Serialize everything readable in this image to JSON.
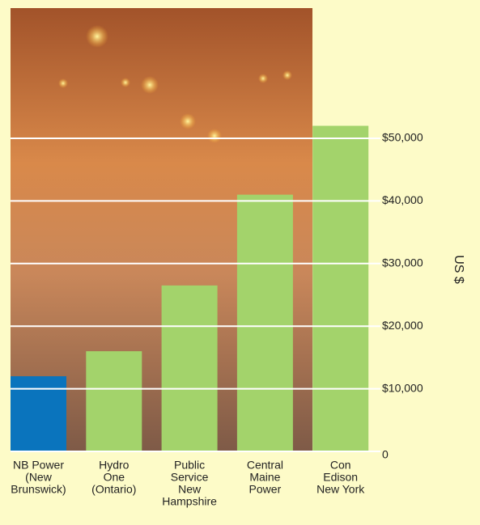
{
  "chart_data": {
    "type": "bar",
    "categories": [
      [
        "NB Power",
        "(New",
        "Brunswick)"
      ],
      [
        "Hydro",
        "One",
        "(Ontario)"
      ],
      [
        "Public",
        "Service",
        "New",
        "Hampshire"
      ],
      [
        "Central",
        "Maine",
        "Power"
      ],
      [
        "Con",
        "Edison",
        "New York"
      ]
    ],
    "values": [
      12000,
      16000,
      26500,
      41000,
      52000
    ],
    "colors": [
      "#0a74bd",
      "#a3d36b",
      "#a3d36b",
      "#a3d36b",
      "#a3d36b"
    ],
    "ylabel": "US $",
    "ylim": [
      0,
      70800
    ],
    "yticks": [
      0,
      {
        "value": 10000,
        "label": "$10,000"
      },
      {
        "value": 20000,
        "label": "$20,000"
      },
      {
        "value": 30000,
        "label": "$30,000"
      },
      {
        "value": 40000,
        "label": "$40,000"
      },
      {
        "value": 50000,
        "label": "$50,000"
      }
    ],
    "grid": true
  }
}
